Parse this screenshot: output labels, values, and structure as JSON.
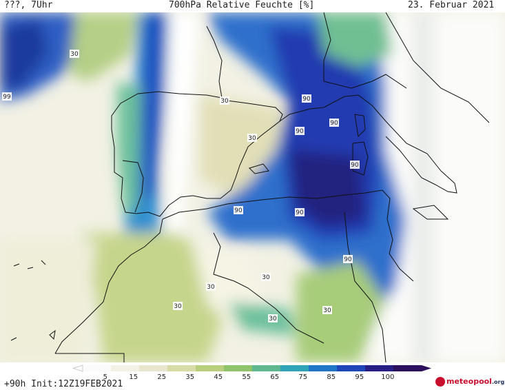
{
  "header": {
    "left": "???, 7Uhr",
    "title": "700hPa Relative Feuchte [%]",
    "date": "23. Februar 2021"
  },
  "footer": {
    "forecast": "+90h Init:12Z19FEB2021",
    "logo_text": "meteopool",
    "logo_tld": ".org"
  },
  "legend": {
    "ticks": [
      "5",
      "15",
      "25",
      "35",
      "45",
      "55",
      "65",
      "75",
      "85",
      "95",
      "100"
    ],
    "colors": [
      "#fbfbfb",
      "#f3f1e6",
      "#e8e6cd",
      "#d7dba6",
      "#b9cf7e",
      "#8fc46a",
      "#5fb890",
      "#2fa4b8",
      "#2175c6",
      "#1e46b8",
      "#271f86",
      "#2b0f5c"
    ]
  },
  "contour_labels": [
    "30",
    "30",
    "30",
    "99",
    "90",
    "90",
    "90",
    "90",
    "90",
    "90",
    "90",
    "30",
    "30",
    "30",
    "30",
    "30"
  ]
}
